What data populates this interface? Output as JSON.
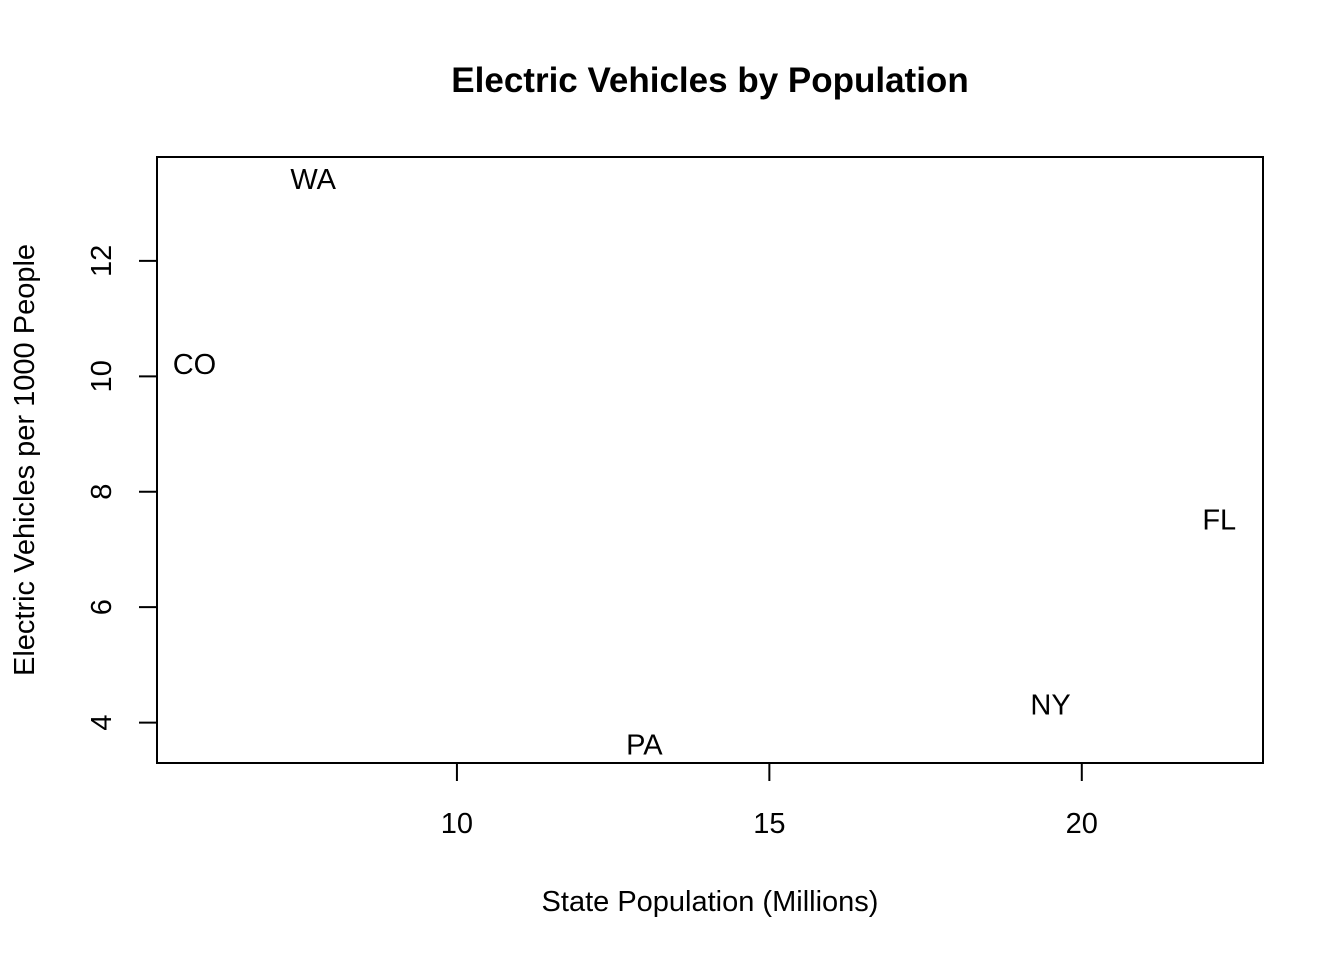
{
  "chart_data": {
    "type": "scatter",
    "title": "Electric Vehicles by Population",
    "xlabel": "State Population (Millions)",
    "ylabel": "Electric Vehicles per 1000 People",
    "xlim": [
      5.2,
      22.9
    ],
    "ylim": [
      3.3,
      13.8
    ],
    "xticks": [
      10,
      15,
      20
    ],
    "yticks": [
      4,
      6,
      8,
      10,
      12
    ],
    "marker": "text",
    "points": [
      {
        "label": "WA",
        "x": 7.7,
        "y": 13.4
      },
      {
        "label": "CO",
        "x": 5.8,
        "y": 10.2
      },
      {
        "label": "FL",
        "x": 22.2,
        "y": 7.5
      },
      {
        "label": "NY",
        "x": 19.5,
        "y": 4.3
      },
      {
        "label": "PA",
        "x": 13.0,
        "y": 3.6
      }
    ],
    "grid": false,
    "legend": "none"
  }
}
